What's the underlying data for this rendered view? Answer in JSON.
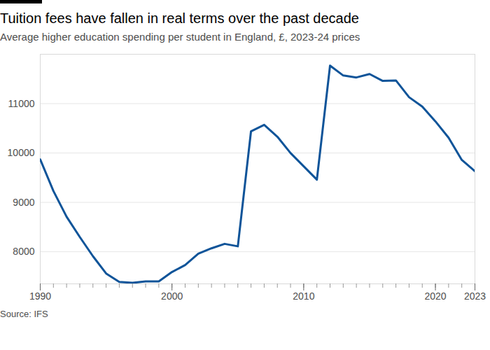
{
  "chart_data": {
    "type": "line",
    "title": "Tuition fees have fallen in real terms over the past decade",
    "subtitle": "Average higher education spending per student in England, £, 2023-24 prices",
    "source": "Source: IFS",
    "x": [
      1990,
      1991,
      1992,
      1993,
      1994,
      1995,
      1996,
      1997,
      1998,
      1999,
      2000,
      2001,
      2002,
      2003,
      2004,
      2005,
      2006,
      2007,
      2008,
      2009,
      2010,
      2011,
      2012,
      2013,
      2014,
      2015,
      2016,
      2017,
      2018,
      2019,
      2020,
      2021,
      2022,
      2023
    ],
    "values": [
      9870,
      9230,
      8710,
      8300,
      7910,
      7560,
      7390,
      7370,
      7400,
      7400,
      7590,
      7730,
      7960,
      8070,
      8160,
      8110,
      10440,
      10570,
      10330,
      10000,
      9730,
      9460,
      11770,
      11570,
      11530,
      11600,
      11460,
      11470,
      11130,
      10940,
      10640,
      10310,
      9860,
      9630
    ],
    "color": "#0f5499",
    "xlim": [
      1990,
      2023
    ],
    "xticks": [
      1990,
      2000,
      2010,
      2020,
      2023
    ],
    "ylim": [
      7350,
      12000
    ],
    "yticks": [
      8000,
      9000,
      10000,
      11000
    ],
    "grid": true
  }
}
